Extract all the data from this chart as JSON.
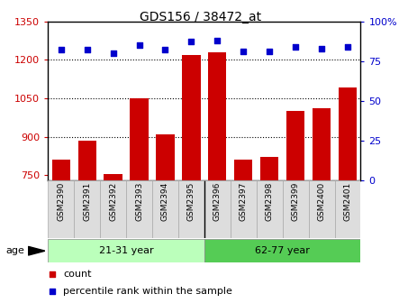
{
  "title": "GDS156 / 38472_at",
  "samples": [
    "GSM2390",
    "GSM2391",
    "GSM2392",
    "GSM2393",
    "GSM2394",
    "GSM2395",
    "GSM2396",
    "GSM2397",
    "GSM2398",
    "GSM2399",
    "GSM2400",
    "GSM2401"
  ],
  "counts": [
    810,
    885,
    755,
    1050,
    910,
    1220,
    1230,
    810,
    820,
    1000,
    1010,
    1090
  ],
  "percentiles": [
    82,
    82,
    80,
    85,
    82,
    87,
    88,
    81,
    81,
    84,
    83,
    84
  ],
  "groups": [
    {
      "label": "21-31 year",
      "start": 0,
      "end": 6,
      "color": "#bbffbb"
    },
    {
      "label": "62-77 year",
      "start": 6,
      "end": 12,
      "color": "#55cc55"
    }
  ],
  "ylim_left": [
    730,
    1350
  ],
  "ylim_right": [
    0,
    100
  ],
  "yticks_left": [
    750,
    900,
    1050,
    1200,
    1350
  ],
  "yticks_right": [
    0,
    25,
    50,
    75,
    100
  ],
  "bar_color": "#cc0000",
  "dot_color": "#0000cc",
  "age_label": "age",
  "legend_count": "count",
  "legend_percentile": "percentile rank within the sample",
  "grid_yticks": [
    900,
    1050,
    1200
  ]
}
